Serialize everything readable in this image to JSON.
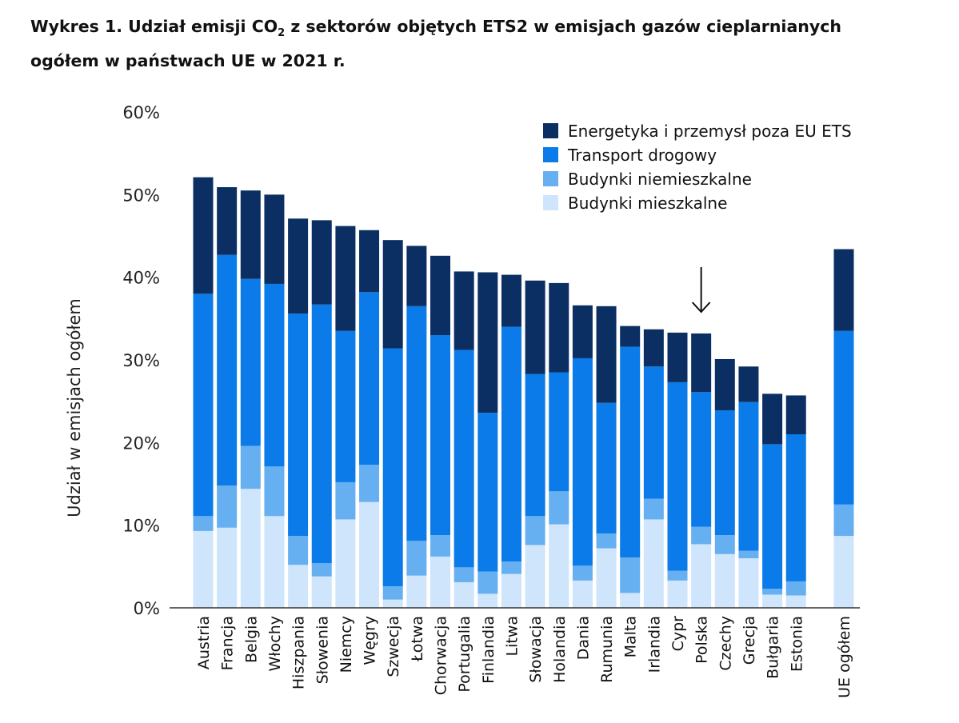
{
  "title": {
    "line1_pre": "Wykres 1. Udział emisji CO",
    "sub": "2",
    "line1_post": " z sektorów objętych ETS2 w emisjach gazów cieplarnianych",
    "line2": "ogółem w państwach UE w 2021 r."
  },
  "chart_data": {
    "type": "bar",
    "stacked": true,
    "ylabel": "Udział w emisjach ogółem",
    "ylim": [
      0,
      60
    ],
    "yticks": [
      "0%",
      "10%",
      "20%",
      "30%",
      "40%",
      "50%",
      "60%"
    ],
    "grid": false,
    "legend_position": "top-right",
    "highlight": {
      "category": "Polska",
      "marker": "arrow-down"
    },
    "categories": [
      "Austria",
      "Francja",
      "Belgia",
      "Włochy",
      "Hiszpania",
      "Słowenia",
      "Niemcy",
      "Węgry",
      "Szwecja",
      "Łotwa",
      "Chorwacja",
      "Portugalia",
      "Finlandia",
      "Litwa",
      "Słowacja",
      "Holandia",
      "Dania",
      "Rumunia",
      "Malta",
      "Irlandia",
      "Cypr",
      "Polska",
      "Czechy",
      "Grecja",
      "Bułgaria",
      "Estonia",
      "UE ogółem"
    ],
    "series": [
      {
        "name": "Budynki mieszkalne",
        "color": "#cfe5fb",
        "values": [
          9.3,
          9.7,
          14.4,
          11.1,
          5.2,
          3.8,
          10.7,
          12.8,
          1.0,
          3.9,
          6.2,
          3.1,
          1.7,
          4.1,
          7.6,
          10.1,
          3.3,
          7.2,
          1.8,
          10.7,
          3.3,
          7.7,
          6.5,
          6.0,
          1.6,
          1.5,
          8.7
        ]
      },
      {
        "name": "Budynki niemieszkalne",
        "color": "#66b0f2",
        "values": [
          1.8,
          5.1,
          5.2,
          6.0,
          3.5,
          1.6,
          4.5,
          4.5,
          1.6,
          4.2,
          2.6,
          1.8,
          2.7,
          1.5,
          3.5,
          4.0,
          1.8,
          1.8,
          4.3,
          2.5,
          1.2,
          2.1,
          2.3,
          0.9,
          0.7,
          1.7,
          3.8
        ]
      },
      {
        "name": "Transport drogowy",
        "color": "#0a7be8",
        "values": [
          26.9,
          27.9,
          20.2,
          22.1,
          26.9,
          31.3,
          18.3,
          20.9,
          28.8,
          28.4,
          24.2,
          26.3,
          19.2,
          28.4,
          17.2,
          14.4,
          25.1,
          15.8,
          25.5,
          16.0,
          22.8,
          16.3,
          15.1,
          18.0,
          17.5,
          17.8,
          21.0
        ]
      },
      {
        "name": "Energetyka i przemysł poza EU ETS",
        "color": "#0b2f63",
        "values": [
          14.1,
          8.2,
          10.7,
          10.8,
          11.5,
          10.2,
          12.7,
          7.5,
          13.1,
          7.3,
          9.6,
          9.5,
          17.0,
          6.3,
          11.3,
          10.8,
          6.4,
          11.7,
          2.5,
          4.5,
          6.0,
          7.1,
          6.2,
          4.3,
          6.1,
          4.7,
          9.9
        ]
      }
    ],
    "legend_order": [
      "Energetyka i przemysł poza EU ETS",
      "Transport drogowy",
      "Budynki niemieszkalne",
      "Budynki mieszkalne"
    ]
  }
}
